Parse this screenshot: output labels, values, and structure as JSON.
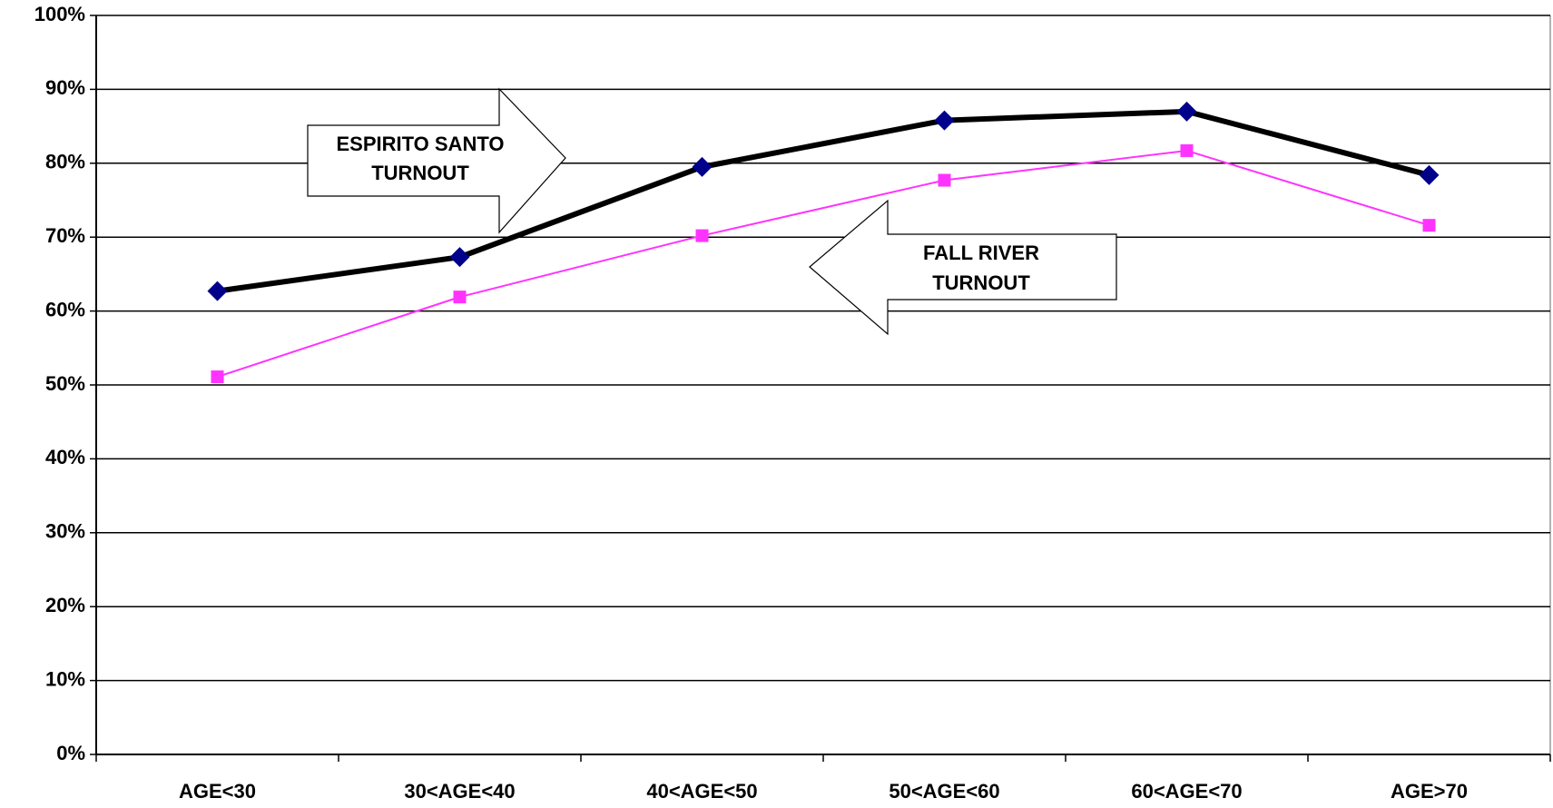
{
  "chart_data": {
    "type": "line",
    "categories": [
      "AGE<30",
      "30<AGE<40",
      "40<AGE<50",
      "50<AGE<60",
      "60<AGE<70",
      "AGE>70"
    ],
    "series": [
      {
        "color": "#000000",
        "marker_color": "#00008b",
        "marker": "diamond",
        "values": [
          62.7,
          67.3,
          79.5,
          85.8,
          87.0,
          78.4
        ]
      },
      {
        "color": "#ff33ff",
        "marker_color": "#ff33ff",
        "marker": "square",
        "values": [
          51.1,
          61.9,
          70.2,
          77.7,
          81.7,
          71.6
        ]
      }
    ],
    "ylim": [
      0,
      100
    ],
    "yticks": [
      {
        "value": 0,
        "label": "0%"
      },
      {
        "value": 10,
        "label": "10%"
      },
      {
        "value": 20,
        "label": "20%"
      },
      {
        "value": 30,
        "label": "30%"
      },
      {
        "value": 40,
        "label": "40%"
      },
      {
        "value": 50,
        "label": "50%"
      },
      {
        "value": 60,
        "label": "60%"
      },
      {
        "value": 70,
        "label": "70%"
      },
      {
        "value": 80,
        "label": "80%"
      },
      {
        "value": 90,
        "label": "90%"
      },
      {
        "value": 100,
        "label": "100%"
      }
    ],
    "grid": true,
    "annotations": [
      {
        "lines": [
          "ESPIRITO SANTO",
          "TURNOUT"
        ]
      },
      {
        "lines": [
          "FALL RIVER",
          "TURNOUT"
        ]
      }
    ]
  }
}
